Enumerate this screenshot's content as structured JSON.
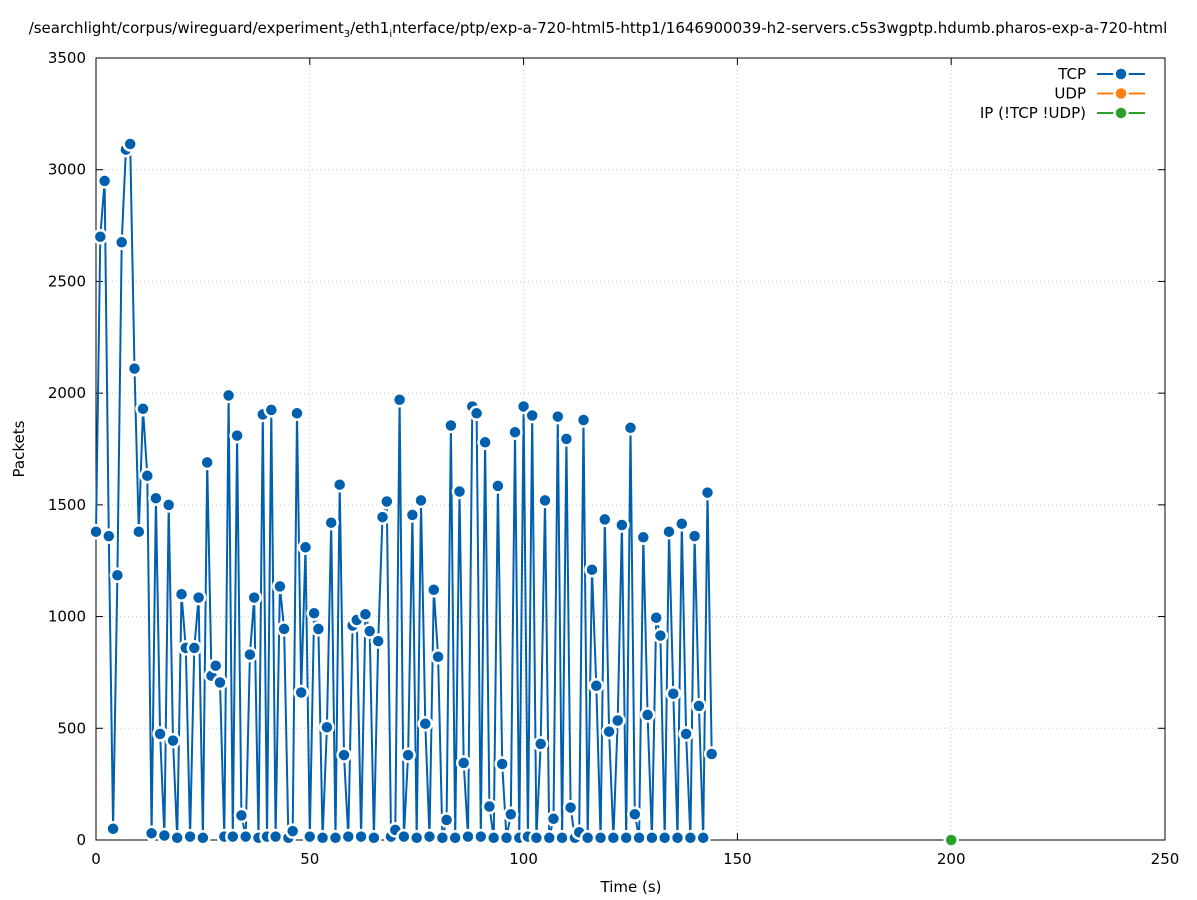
{
  "chart_data": {
    "type": "line",
    "title": "/searchlight/corpus/wireguard/experiment_3/eth1_interface/ptp/exp-a-720-html5-http1/1646900039-h2-servers.c5s3wgptp.hdumb.pharos-exp-a-720-html",
    "title_parts": {
      "p1": "/searchlight/corpus/wireguard/experiment",
      "s1": "3",
      "p2": "/eth1",
      "s2": "i",
      "p3": "nterface/ptp/exp-a-720-html5-http1/1646900039-h2-servers.c5s3wgptp.hdumb.pharos-exp-a-720-html"
    },
    "xlabel": "Time (s)",
    "ylabel": "Packets",
    "xlim": [
      0,
      250
    ],
    "ylim": [
      0,
      3500
    ],
    "xticks": [
      "0",
      "50",
      "100",
      "150",
      "200",
      "250"
    ],
    "yticks": [
      "0",
      "500",
      "1000",
      "1500",
      "2000",
      "2500",
      "3000",
      "3500"
    ],
    "grid": true,
    "legend_position": "top-right",
    "series": [
      {
        "name": "TCP",
        "color": "#0060ad",
        "points": [
          [
            0,
            1380
          ],
          [
            1,
            2700
          ],
          [
            2,
            2950
          ],
          [
            3,
            1360
          ],
          [
            4,
            50
          ],
          [
            5,
            1185
          ],
          [
            6,
            2675
          ],
          [
            7,
            3090
          ],
          [
            8,
            3115
          ],
          [
            9,
            2110
          ],
          [
            10,
            1380
          ],
          [
            11,
            1930
          ],
          [
            12,
            1630
          ],
          [
            13,
            30
          ],
          [
            14,
            1530
          ],
          [
            15,
            475
          ],
          [
            16,
            20
          ],
          [
            17,
            1500
          ],
          [
            18,
            445
          ],
          [
            19,
            10
          ],
          [
            20,
            1100
          ],
          [
            21,
            860
          ],
          [
            22,
            15
          ],
          [
            23,
            860
          ],
          [
            24,
            1085
          ],
          [
            25,
            10
          ],
          [
            26,
            1690
          ],
          [
            27,
            735
          ],
          [
            28,
            780
          ],
          [
            29,
            705
          ],
          [
            30,
            15
          ],
          [
            31,
            1990
          ],
          [
            32,
            15
          ],
          [
            33,
            1810
          ],
          [
            34,
            110
          ],
          [
            35,
            15
          ],
          [
            36,
            830
          ],
          [
            37,
            1085
          ],
          [
            38,
            10
          ],
          [
            39,
            1905
          ],
          [
            40,
            15
          ],
          [
            41,
            1925
          ],
          [
            42,
            15
          ],
          [
            43,
            1135
          ],
          [
            44,
            945
          ],
          [
            45,
            10
          ],
          [
            46,
            40
          ],
          [
            47,
            1910
          ],
          [
            48,
            660
          ],
          [
            49,
            1310
          ],
          [
            50,
            15
          ],
          [
            51,
            1015
          ],
          [
            52,
            945
          ],
          [
            53,
            10
          ],
          [
            54,
            505
          ],
          [
            55,
            1420
          ],
          [
            56,
            10
          ],
          [
            57,
            1590
          ],
          [
            58,
            380
          ],
          [
            59,
            15
          ],
          [
            60,
            960
          ],
          [
            61,
            985
          ],
          [
            62,
            15
          ],
          [
            63,
            1010
          ],
          [
            64,
            935
          ],
          [
            65,
            10
          ],
          [
            66,
            890
          ],
          [
            67,
            1445
          ],
          [
            68,
            1515
          ],
          [
            69,
            15
          ],
          [
            70,
            45
          ],
          [
            71,
            1970
          ],
          [
            72,
            15
          ],
          [
            73,
            380
          ],
          [
            74,
            1455
          ],
          [
            75,
            10
          ],
          [
            76,
            1520
          ],
          [
            77,
            520
          ],
          [
            78,
            15
          ],
          [
            79,
            1120
          ],
          [
            80,
            820
          ],
          [
            81,
            10
          ],
          [
            82,
            90
          ],
          [
            83,
            1855
          ],
          [
            84,
            10
          ],
          [
            85,
            1560
          ],
          [
            86,
            345
          ],
          [
            87,
            15
          ],
          [
            88,
            1940
          ],
          [
            89,
            1910
          ],
          [
            90,
            15
          ],
          [
            91,
            1780
          ],
          [
            92,
            150
          ],
          [
            93,
            10
          ],
          [
            94,
            1585
          ],
          [
            95,
            340
          ],
          [
            96,
            10
          ],
          [
            97,
            115
          ],
          [
            98,
            1825
          ],
          [
            99,
            10
          ],
          [
            100,
            1940
          ],
          [
            101,
            15
          ],
          [
            102,
            1900
          ],
          [
            103,
            10
          ],
          [
            104,
            430
          ],
          [
            105,
            1520
          ],
          [
            106,
            10
          ],
          [
            107,
            95
          ],
          [
            108,
            1895
          ],
          [
            109,
            10
          ],
          [
            110,
            1795
          ],
          [
            111,
            145
          ],
          [
            112,
            10
          ],
          [
            113,
            35
          ],
          [
            114,
            1880
          ],
          [
            115,
            10
          ],
          [
            116,
            1210
          ],
          [
            117,
            690
          ],
          [
            118,
            10
          ],
          [
            119,
            1435
          ],
          [
            120,
            485
          ],
          [
            121,
            10
          ],
          [
            122,
            535
          ],
          [
            123,
            1410
          ],
          [
            124,
            10
          ],
          [
            125,
            1845
          ],
          [
            126,
            115
          ],
          [
            127,
            10
          ],
          [
            128,
            1355
          ],
          [
            129,
            560
          ],
          [
            130,
            10
          ],
          [
            131,
            995
          ],
          [
            132,
            915
          ],
          [
            133,
            10
          ],
          [
            134,
            1380
          ],
          [
            135,
            655
          ],
          [
            136,
            10
          ],
          [
            137,
            1415
          ],
          [
            138,
            475
          ],
          [
            139,
            10
          ],
          [
            140,
            1360
          ],
          [
            141,
            600
          ],
          [
            142,
            10
          ],
          [
            143,
            1555
          ],
          [
            144,
            385
          ]
        ]
      },
      {
        "name": "UDP",
        "color": "#ff7f0e",
        "points": []
      },
      {
        "name": "IP (!TCP  !UDP)",
        "color": "#2ca02c",
        "points": [
          [
            200,
            0
          ]
        ]
      }
    ]
  }
}
